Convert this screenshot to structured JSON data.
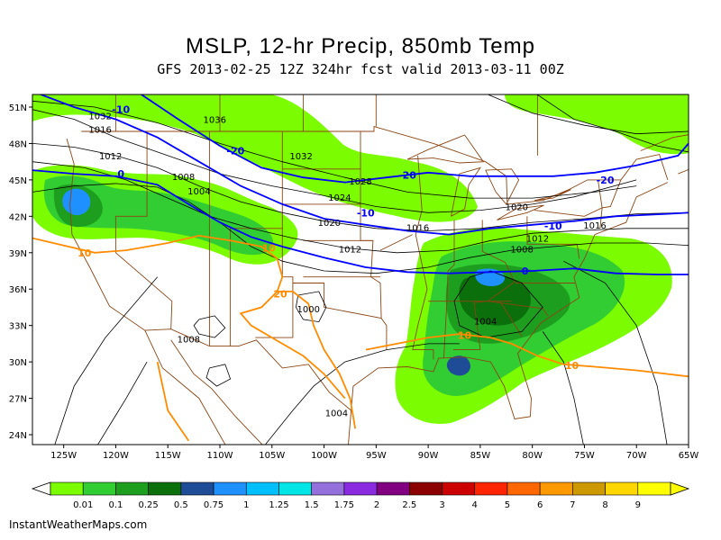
{
  "title": "MSLP, 12-hr Precip, 850mb Temp",
  "subtitle": "GFS 2013-02-25 12Z 324hr fcst valid 2013-03-11 00Z",
  "credit": "InstantWeatherMaps.com",
  "axes": {
    "lat_labels": [
      "51N",
      "48N",
      "45N",
      "42N",
      "39N",
      "36N",
      "33N",
      "30N",
      "27N",
      "24N"
    ],
    "lon_labels": [
      "125W",
      "120W",
      "115W",
      "110W",
      "105W",
      "100W",
      "95W",
      "90W",
      "85W",
      "80W",
      "75W",
      "70W",
      "65W"
    ]
  },
  "colorbar": {
    "labels": [
      "0.01",
      "0.1",
      "0.25",
      "0.5",
      "0.75",
      "1",
      "1.25",
      "1.5",
      "1.75",
      "2",
      "2.5",
      "3",
      "4",
      "5",
      "6",
      "7",
      "8",
      "9"
    ],
    "colors": [
      "#7cfc00",
      "#32cd32",
      "#1e9e1e",
      "#0b6f0b",
      "#1e4c96",
      "#1e90ff",
      "#00bfff",
      "#00e5e5",
      "#9370db",
      "#8a2be2",
      "#800080",
      "#8b0000",
      "#cc0000",
      "#ff2400",
      "#ff6600",
      "#ff9900",
      "#cc9900",
      "#ffd700",
      "#ffff00"
    ]
  },
  "map_colors": {
    "light_green": "#7cfc00",
    "mid_green": "#32cd32",
    "dark_green": "#1e9e1e",
    "deep_green": "#0b6f0b",
    "blue": "#1e90ff",
    "dark_blue": "#1e4c96",
    "isotherm_blue": "#0000ff",
    "isotherm_orange": "#ff8c00",
    "border": "#8b4513"
  },
  "isobar_labels": [
    {
      "text": "1032",
      "lon": -121.5,
      "lat": 50.3
    },
    {
      "text": "1036",
      "lon": -110.5,
      "lat": 50.0
    },
    {
      "text": "1016",
      "lon": -121.5,
      "lat": 49.2
    },
    {
      "text": "1012",
      "lon": -120.5,
      "lat": 47.0
    },
    {
      "text": "1032",
      "lon": -102.2,
      "lat": 47.0
    },
    {
      "text": "1008",
      "lon": -113.5,
      "lat": 45.3
    },
    {
      "text": "1028",
      "lon": -96.5,
      "lat": 44.9
    },
    {
      "text": "1004",
      "lon": -112.0,
      "lat": 44.1
    },
    {
      "text": "1024",
      "lon": -98.5,
      "lat": 43.6
    },
    {
      "text": "1020",
      "lon": -81.5,
      "lat": 42.8
    },
    {
      "text": "1020",
      "lon": -99.5,
      "lat": 41.5
    },
    {
      "text": "1016",
      "lon": -91.0,
      "lat": 41.1
    },
    {
      "text": "1016",
      "lon": -74.0,
      "lat": 41.3
    },
    {
      "text": "1012",
      "lon": -79.5,
      "lat": 40.2
    },
    {
      "text": "1012",
      "lon": -97.5,
      "lat": 39.3
    },
    {
      "text": "1008",
      "lon": -81.0,
      "lat": 39.3
    },
    {
      "text": "1000",
      "lon": -101.5,
      "lat": 34.4
    },
    {
      "text": "1004",
      "lon": -84.5,
      "lat": 33.4
    },
    {
      "text": "1008",
      "lon": -113.0,
      "lat": 31.9
    },
    {
      "text": "1004",
      "lon": -98.8,
      "lat": 25.8
    }
  ],
  "temp_labels": [
    {
      "text": "-10",
      "lon": -119.5,
      "lat": 50.8,
      "color": "blue"
    },
    {
      "text": "-20",
      "lon": -108.5,
      "lat": 47.4,
      "color": "blue"
    },
    {
      "text": "0",
      "lon": -119.5,
      "lat": 45.5,
      "color": "blue"
    },
    {
      "text": "-20",
      "lon": -92.0,
      "lat": 45.4,
      "color": "blue"
    },
    {
      "text": "-20",
      "lon": -73.0,
      "lat": 45.0,
      "color": "blue"
    },
    {
      "text": "-10",
      "lon": -96.0,
      "lat": 42.3,
      "color": "blue"
    },
    {
      "text": "-10",
      "lon": -78.0,
      "lat": 41.2,
      "color": "blue"
    },
    {
      "text": "0",
      "lon": -80.7,
      "lat": 37.5,
      "color": "blue"
    },
    {
      "text": "10",
      "lon": -123.0,
      "lat": 39.0,
      "color": "orange"
    },
    {
      "text": "10",
      "lon": -105.3,
      "lat": 39.4,
      "color": "orange"
    },
    {
      "text": "20",
      "lon": -104.2,
      "lat": 35.6,
      "color": "orange"
    },
    {
      "text": "10",
      "lon": -86.5,
      "lat": 32.2,
      "color": "orange"
    },
    {
      "text": "10",
      "lon": -76.2,
      "lat": 29.7,
      "color": "orange"
    }
  ]
}
